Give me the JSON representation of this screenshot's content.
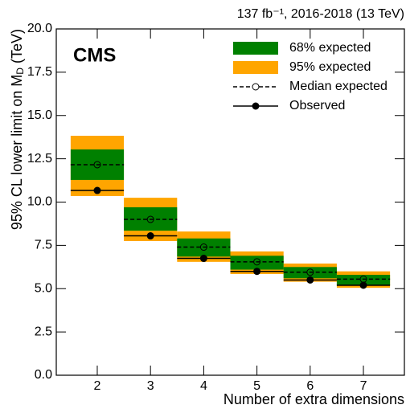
{
  "chart_data": {
    "type": "band-limits",
    "title": "137 fb⁻¹, 2016-2018 (13 TeV)",
    "label": "CMS",
    "xlabel": "Number of extra dimensions",
    "ylabel": "95% CL lower limit on M",
    "ylabel_sub": "D",
    "ylabel_end": " (TeV)",
    "x": [
      2,
      3,
      4,
      5,
      6,
      7
    ],
    "xlim": [
      1.23,
      7.77
    ],
    "xticks": [
      2,
      3,
      4,
      5,
      6,
      7
    ],
    "ylim": [
      0,
      20
    ],
    "yticks": [
      {
        "value": 0,
        "label": "0.0"
      },
      2.5,
      {
        "value": 5,
        "label": "5.0"
      },
      7.5,
      {
        "value": 10,
        "label": "10.0"
      },
      12.5,
      {
        "value": 15,
        "label": "15.0"
      },
      17.5,
      {
        "value": 20,
        "label": "20.0"
      }
    ],
    "legend": "upper right",
    "series": [
      {
        "name": "68% expected",
        "color": "#008000",
        "low": [
          11.28,
          8.35,
          6.85,
          6.1,
          5.6,
          5.2
        ],
        "high": [
          13.04,
          9.7,
          7.9,
          6.9,
          6.25,
          5.8
        ]
      },
      {
        "name": "95% expected",
        "color": "#ffa500",
        "low": [
          10.35,
          7.75,
          6.55,
          5.85,
          5.4,
          5.05
        ],
        "high": [
          13.83,
          10.25,
          8.3,
          7.15,
          6.45,
          6.0
        ]
      },
      {
        "name": "Median expected",
        "color": "#000000",
        "values": [
          12.16,
          9.0,
          7.4,
          6.55,
          5.95,
          5.55
        ]
      },
      {
        "name": "Observed",
        "color": "#000000",
        "values": [
          10.67,
          8.05,
          6.75,
          6.0,
          5.5,
          5.2
        ]
      }
    ]
  }
}
